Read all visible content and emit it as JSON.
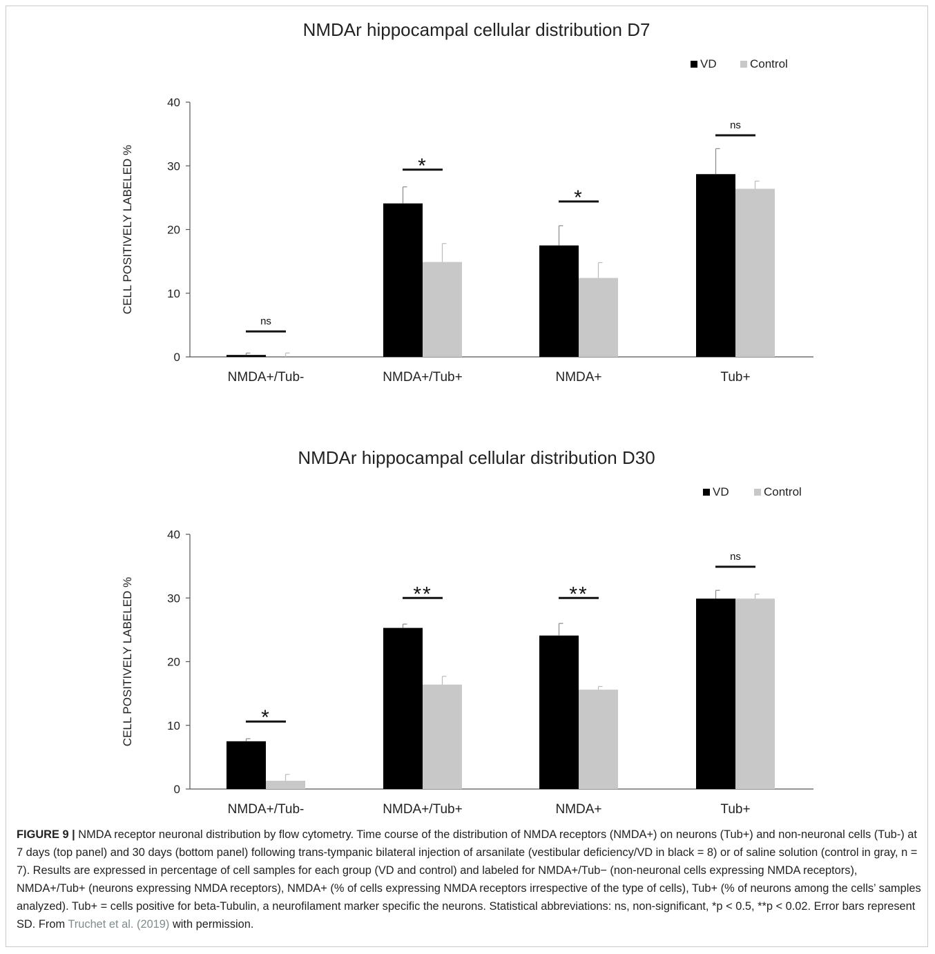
{
  "chart_data": [
    {
      "type": "bar",
      "title": "NMDAr hippocampal cellular distribution D7",
      "ylabel": "CELL POSITIVELY LABELED %",
      "ylim": [
        0,
        40
      ],
      "yticks": [
        "0",
        "10",
        "20",
        "30",
        "40"
      ],
      "categories": [
        "NMDA+/Tub-",
        "NMDA+/Tub+",
        "NMDA+",
        "Tub+"
      ],
      "legend": "top-right",
      "series": [
        {
          "name": "VD",
          "color": "#000000",
          "values": [
            0.3,
            24.1,
            17.5,
            28.7
          ],
          "errors": [
            0.3,
            2.6,
            3.1,
            4.0
          ]
        },
        {
          "name": "Control",
          "color": "#c8c8c8",
          "values": [
            0.0,
            14.9,
            12.4,
            26.4
          ],
          "errors": [
            0.6,
            2.9,
            2.4,
            1.2
          ]
        }
      ],
      "significance": [
        {
          "label": "ns",
          "y": 4.0
        },
        {
          "label": "*",
          "y": 29.4
        },
        {
          "label": "*",
          "y": 24.4
        },
        {
          "label": "ns",
          "y": 34.8
        }
      ]
    },
    {
      "type": "bar",
      "title": "NMDAr hippocampal cellular distribution D30",
      "ylabel": "CELL POSITIVELY LABELED %",
      "ylim": [
        0,
        40
      ],
      "yticks": [
        "0",
        "10",
        "20",
        "30",
        "40"
      ],
      "categories": [
        "NMDA+/Tub-",
        "NMDA+/Tub+",
        "NMDA+",
        "Tub+"
      ],
      "legend": "top-right",
      "series": [
        {
          "name": "VD",
          "color": "#000000",
          "values": [
            7.5,
            25.3,
            24.1,
            29.9
          ],
          "errors": [
            0.4,
            0.6,
            1.9,
            1.3
          ]
        },
        {
          "name": "Control",
          "color": "#c8c8c8",
          "values": [
            1.3,
            16.4,
            15.6,
            29.9
          ],
          "errors": [
            1.0,
            1.3,
            0.5,
            0.7
          ]
        }
      ],
      "significance": [
        {
          "label": "*",
          "y": 10.6
        },
        {
          "label": "**",
          "y": 30.0
        },
        {
          "label": "**",
          "y": 30.0
        },
        {
          "label": "ns",
          "y": 34.9
        }
      ]
    }
  ],
  "caption": {
    "figure_label": "FIGURE 9 |",
    "text": "NMDA receptor neuronal distribution by flow cytometry. Time course of the distribution of NMDA receptors (NMDA+) on neurons (Tub+) and non-neuronal cells (Tub-) at 7 days (top panel) and 30 days (bottom panel) following trans-tympanic bilateral injection of arsanilate (vestibular deficiency/VD in black = 8) or of saline solution (control in gray, n = 7). Results are expressed in percentage of cell samples for each group (VD and control) and labeled for NMDA+/Tub− (non-neuronal cells expressing NMDA receptors), NMDA+/Tub+ (neurons expressing NMDA receptors), NMDA+ (% of cells expressing NMDA receptors irrespective of the type of cells), Tub+ (% of neurons among the cells’ samples analyzed). Tub+ = cells positive for beta-Tubulin, a neurofilament marker specific the neurons. Statistical abbreviations: ns, non-significant, *p < 0.5, **p < 0.02. Error bars represent SD. From",
    "citation": "Truchet et al. (2019)",
    "suffix": "with permission."
  }
}
